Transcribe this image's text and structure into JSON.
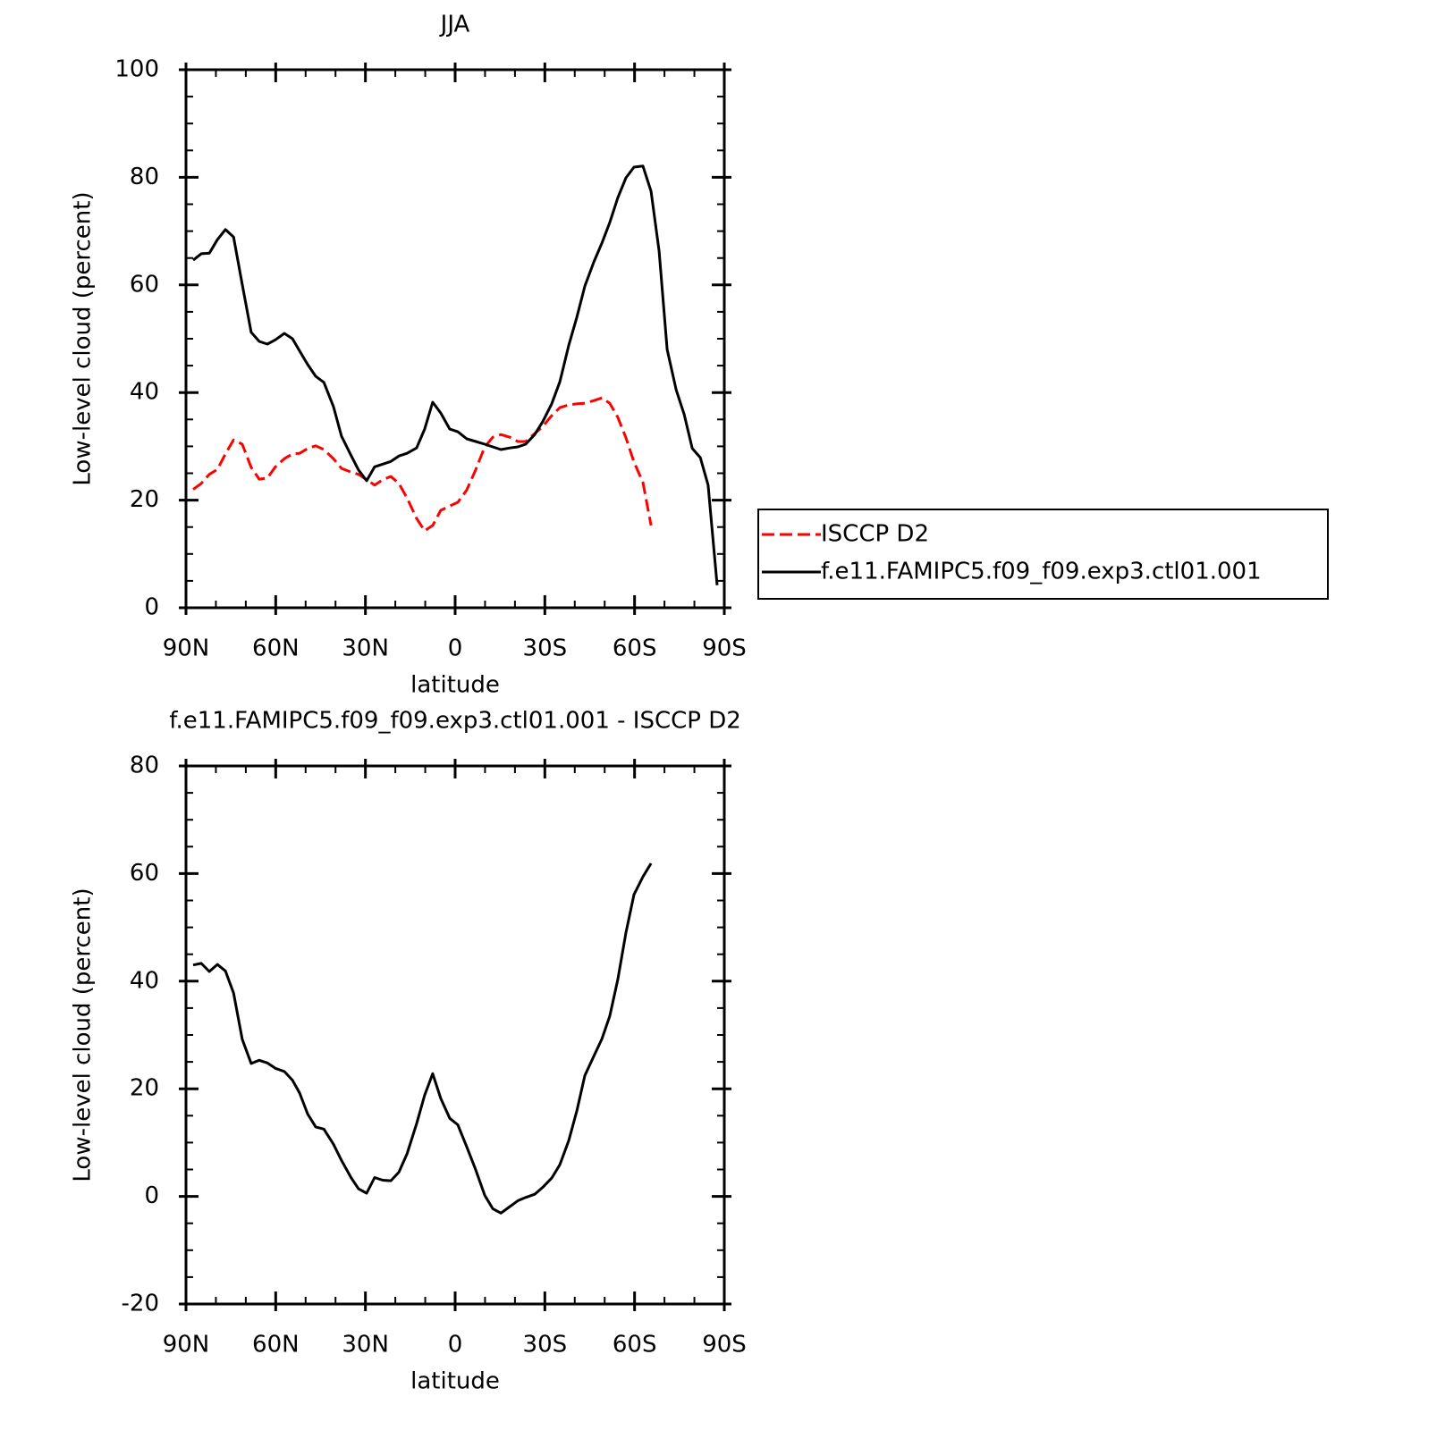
{
  "chart_data": [
    {
      "type": "line",
      "title": "JJA",
      "xlabel": "latitude",
      "ylabel": "Low-level cloud (percent)",
      "x": [
        87.6,
        84.9,
        82.2,
        79.5,
        76.8,
        74.1,
        71.2,
        68.2,
        65.5,
        62.8,
        60.1,
        57.1,
        54.4,
        52.0,
        49.3,
        46.6,
        43.9,
        40.7,
        38.0,
        34.7,
        32.3,
        29.6,
        26.9,
        24.2,
        21.5,
        18.8,
        16.1,
        12.9,
        10.2,
        7.5,
        4.8,
        1.8,
        -0.9,
        -3.9,
        -6.9,
        -9.9,
        -12.6,
        -15.3,
        -18.3,
        -21.0,
        -23.6,
        -26.6,
        -29.3,
        -32.3,
        -35.0,
        -38.0,
        -40.7,
        -43.4,
        -46.4,
        -49.1,
        -51.7,
        -54.4,
        -57.1,
        -59.8,
        -62.8,
        -65.5,
        -68.2,
        -70.9,
        -73.9,
        -76.6,
        -79.3,
        -82.0,
        -84.6,
        -87.6
      ],
      "series": [
        {
          "name": "ISCCP D2",
          "color": "#ff0000",
          "dashed": true,
          "values": [
            22.0,
            23.1,
            24.8,
            25.7,
            28.6,
            31.2,
            30.4,
            26.1,
            23.9,
            24.1,
            26.2,
            27.7,
            28.6,
            28.7,
            29.6,
            30.1,
            29.4,
            27.7,
            25.9,
            25.2,
            24.8,
            23.8,
            22.8,
            23.8,
            24.4,
            23.1,
            20.4,
            16.6,
            14.3,
            15.3,
            18.1,
            18.9,
            19.6,
            21.9,
            25.7,
            29.9,
            31.7,
            32.2,
            31.7,
            30.9,
            30.9,
            32.4,
            33.7,
            35.7,
            37.2,
            37.7,
            37.9,
            38.0,
            38.5,
            39.0,
            38.0,
            35.4,
            31.6,
            27.1,
            23.3,
            15.3,
            null,
            null,
            null,
            null,
            null,
            null,
            null,
            null
          ]
        },
        {
          "name": "f.e11.FAMIPC5.f09_f09.exp3.ctl01.001",
          "color": "#000000",
          "dashed": false,
          "values": [
            64.6,
            65.8,
            65.9,
            68.4,
            70.3,
            68.9,
            60.1,
            51.2,
            49.5,
            49.0,
            49.8,
            51.0,
            50.0,
            47.7,
            45.2,
            43.0,
            41.9,
            37.4,
            31.9,
            28.2,
            25.6,
            23.6,
            26.2,
            26.7,
            27.2,
            28.2,
            28.7,
            29.7,
            33.2,
            38.2,
            36.2,
            33.2,
            32.7,
            31.4,
            30.9,
            30.4,
            29.9,
            29.4,
            29.7,
            29.9,
            30.4,
            32.2,
            34.6,
            37.9,
            42.0,
            48.8,
            54.0,
            59.8,
            64.3,
            67.8,
            71.6,
            76.2,
            79.9,
            81.9,
            82.1,
            77.4,
            66.3,
            48.0,
            40.5,
            35.9,
            29.6,
            27.9,
            22.8,
            4.2
          ]
        }
      ],
      "xlim": [
        90,
        -90
      ],
      "xticks": [
        {
          "value": 90,
          "label": "90N"
        },
        {
          "value": 60,
          "label": "60N"
        },
        {
          "value": 30,
          "label": "30N"
        },
        0,
        {
          "value": -30,
          "label": "30S"
        },
        {
          "value": -60,
          "label": "60S"
        },
        {
          "value": -90,
          "label": "90S"
        }
      ],
      "minor_xticks": [
        80,
        70,
        50,
        40,
        20,
        10,
        -10,
        -20,
        -40,
        -50,
        -70,
        -80
      ],
      "ylim": [
        0,
        100
      ],
      "yticks": [
        0,
        20,
        40,
        60,
        80,
        100
      ],
      "minor_yticks": [
        5,
        10,
        15,
        25,
        30,
        35,
        45,
        50,
        55,
        65,
        70,
        75,
        85,
        90,
        95
      ],
      "legend": "right"
    },
    {
      "type": "line",
      "title": "f.e11.FAMIPC5.f09_f09.exp3.ctl01.001 - ISCCP D2",
      "xlabel": "latitude",
      "ylabel": "Low-level cloud (percent)",
      "x": [
        87.6,
        84.9,
        82.2,
        79.5,
        76.8,
        74.1,
        71.2,
        68.2,
        65.5,
        62.8,
        60.1,
        57.1,
        54.4,
        52.0,
        49.3,
        46.6,
        43.9,
        40.7,
        38.0,
        34.7,
        32.3,
        29.6,
        26.9,
        24.2,
        21.5,
        18.8,
        16.1,
        12.9,
        10.2,
        7.5,
        4.8,
        1.8,
        -0.9,
        -3.9,
        -6.9,
        -9.9,
        -12.6,
        -15.3,
        -18.3,
        -21.0,
        -23.6,
        -26.6,
        -29.3,
        -32.3,
        -35.0,
        -38.0,
        -40.7,
        -43.4,
        -46.4,
        -49.1,
        -51.7,
        -54.4,
        -57.1,
        -59.8,
        -62.8,
        -65.5,
        -68.2,
        -70.9,
        -73.9,
        -76.6,
        -79.3,
        -82.0,
        -84.6,
        -87.6
      ],
      "series": [
        {
          "color": "#000000",
          "dashed": false,
          "values": [
            43.0,
            43.3,
            41.8,
            43.1,
            41.9,
            37.8,
            29.2,
            24.7,
            25.3,
            24.8,
            23.8,
            23.2,
            21.6,
            19.2,
            15.3,
            12.9,
            12.5,
            9.7,
            6.7,
            3.4,
            1.4,
            0.6,
            3.5,
            3.0,
            2.9,
            4.5,
            7.9,
            13.5,
            18.8,
            22.8,
            18.2,
            14.5,
            13.3,
            9.2,
            4.9,
            0.2,
            -2.3,
            -3.1,
            -1.9,
            -0.8,
            -0.2,
            0.4,
            1.7,
            3.4,
            5.9,
            10.4,
            15.9,
            22.5,
            26.1,
            29.3,
            33.5,
            40.3,
            49.0,
            56.1,
            59.4,
            61.9,
            null,
            null,
            null,
            null,
            null,
            null,
            null,
            null
          ]
        }
      ],
      "xlim": [
        90,
        -90
      ],
      "xticks": [
        {
          "value": 90,
          "label": "90N"
        },
        {
          "value": 60,
          "label": "60N"
        },
        {
          "value": 30,
          "label": "30N"
        },
        0,
        {
          "value": -30,
          "label": "30S"
        },
        {
          "value": -60,
          "label": "60S"
        },
        {
          "value": -90,
          "label": "90S"
        }
      ],
      "minor_xticks": [
        80,
        70,
        50,
        40,
        20,
        10,
        -10,
        -20,
        -40,
        -50,
        -70,
        -80
      ],
      "ylim": [
        -20,
        80
      ],
      "yticks": [
        -20,
        0,
        20,
        40,
        60,
        80
      ],
      "minor_yticks": [
        -15,
        -10,
        -5,
        5,
        10,
        15,
        25,
        30,
        35,
        45,
        50,
        55,
        65,
        70,
        75
      ]
    }
  ]
}
